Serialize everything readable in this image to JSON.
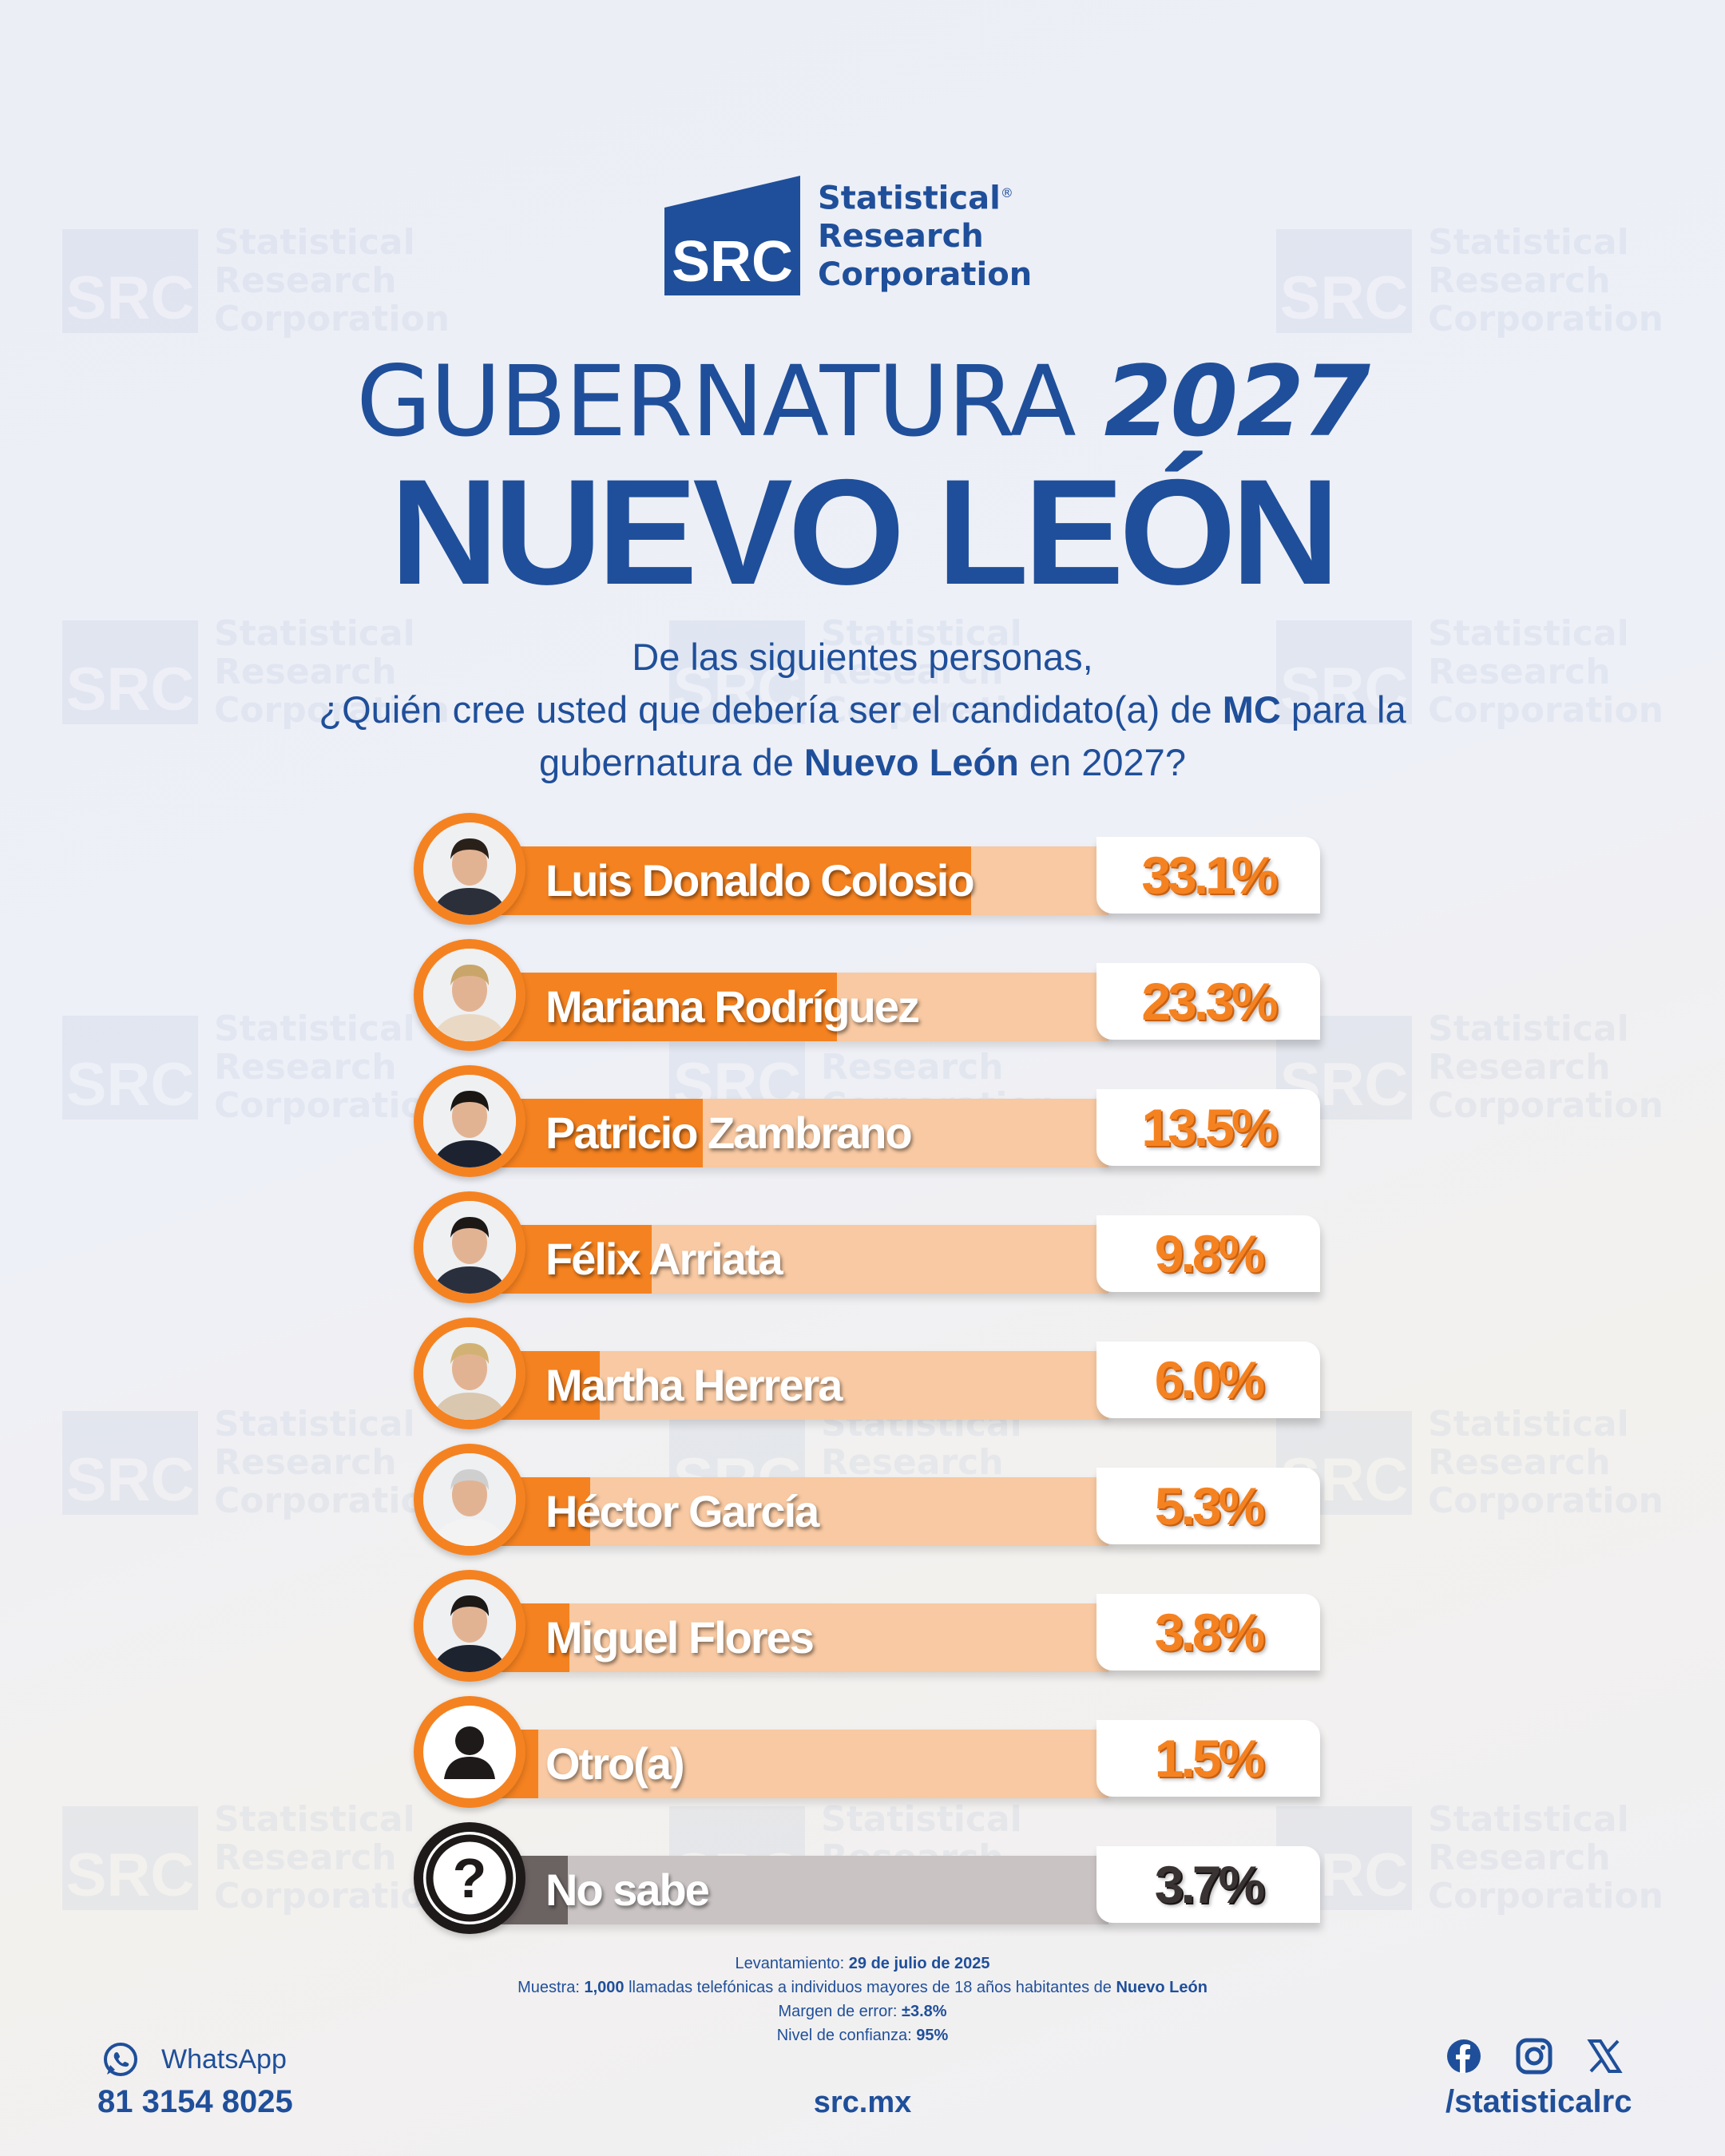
{
  "brand": {
    "abbr": "SRC",
    "line1": "Statistical",
    "line2": "Research",
    "line3": "Corporation",
    "reg": "®"
  },
  "title": {
    "part1": "GUBERNATURA",
    "year": "2027",
    "state": "NUEVO LEÓN"
  },
  "question": {
    "line1": "De las siguientes personas,",
    "line2_a": "¿Quién cree usted que debería ser el candidato(a) de ",
    "line2_b": "MC",
    "line2_c": " para la",
    "line3_a": "gubernatura de ",
    "line3_b": "Nuevo León",
    "line3_c": " en 2027?"
  },
  "colors": {
    "accent": "#f58220",
    "bar_bg": "#f8c9a2",
    "brand_blue": "#1f4f9a",
    "gray_fill": "#6b6262",
    "gray_bg": "#c9c3c3"
  },
  "chart_data": {
    "type": "bar",
    "orientation": "horizontal",
    "unit": "%",
    "categories": [
      "Luis Donaldo Colosio",
      "Mariana Rodríguez",
      "Patricio Zambrano",
      "Félix Arriata",
      "Martha Herrera",
      "Héctor García",
      "Miguel Flores",
      "Otro(a)",
      "No sabe"
    ],
    "values": [
      33.1,
      23.3,
      13.5,
      9.8,
      6.0,
      5.3,
      3.8,
      1.5,
      3.7
    ],
    "value_labels": [
      "33.1%",
      "23.3%",
      "13.5%",
      "9.8%",
      "6.0%",
      "5.3%",
      "3.8%",
      "1.5%",
      "3.7%"
    ],
    "icons": [
      "photo",
      "photo",
      "photo",
      "photo",
      "photo",
      "photo",
      "photo",
      "person-icon",
      "question-icon"
    ],
    "xlim": [
      0,
      100
    ]
  },
  "footer": {
    "survey_label": "Levantamiento:",
    "survey_date": "29 de julio de 2025",
    "sample_label": "Muestra:",
    "sample_n": "1,000",
    "sample_mid": " llamadas telefónicas a individuos mayores de 18 años habitantes de ",
    "sample_place": "Nuevo León",
    "margin_label": "Margen de error:",
    "margin_val": "±3.8%",
    "conf_label": "Nivel de confianza:",
    "conf_val": "95%"
  },
  "contact": {
    "whatsapp_label": "WhatsApp",
    "phone": "81 3154 8025",
    "site": "src.mx",
    "handle": "/statisticalrc",
    "social_icons": [
      "facebook-icon",
      "instagram-icon",
      "x-icon"
    ]
  }
}
